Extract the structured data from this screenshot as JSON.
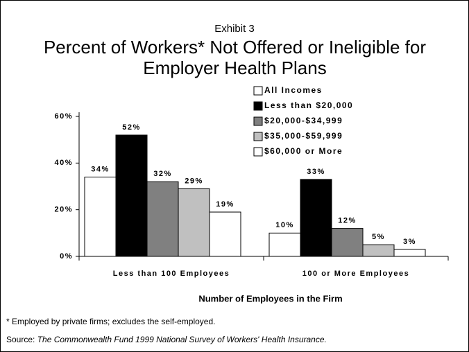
{
  "exhibit": "Exhibit 3",
  "chart_data": {
    "type": "bar",
    "title": "Percent of Workers* Not Offered or Ineligible for Employer Health Plans",
    "x_label": "Number of Employees in the Firm",
    "categories": [
      "Less than 100 Employees",
      "100 or More Employees"
    ],
    "series": [
      {
        "name": "All Incomes",
        "color": "#ffffff",
        "values": [
          34,
          10
        ],
        "value_labels": [
          "34%",
          "10%"
        ]
      },
      {
        "name": "Less than $20,000",
        "color": "#000000",
        "values": [
          52,
          33
        ],
        "value_labels": [
          "52%",
          "33%"
        ]
      },
      {
        "name": "$20,000-$34,999",
        "color": "#808080",
        "values": [
          32,
          12
        ],
        "value_labels": [
          "32%",
          "12%"
        ]
      },
      {
        "name": "$35,000-$59,999",
        "color": "#c0c0c0",
        "values": [
          29,
          5
        ],
        "value_labels": [
          "29%",
          "5%"
        ]
      },
      {
        "name": "$60,000 or More",
        "color": "#ffffff",
        "values": [
          19,
          3
        ],
        "value_labels": [
          "19%",
          "3%"
        ]
      }
    ],
    "ylim": [
      0,
      60
    ],
    "yticks": [
      {
        "value": 0,
        "label": "0%"
      },
      {
        "value": 20,
        "label": "20%"
      },
      {
        "value": 40,
        "label": "40%"
      },
      {
        "value": 60,
        "label": "60%"
      }
    ],
    "legend": "upper right",
    "grid": false
  },
  "footnote": "* Employed by private firms; excludes the self-employed.",
  "source": {
    "label": "Source:",
    "text": "The Commonwealth Fund 1999 National Survey of Workers' Health Insurance."
  }
}
